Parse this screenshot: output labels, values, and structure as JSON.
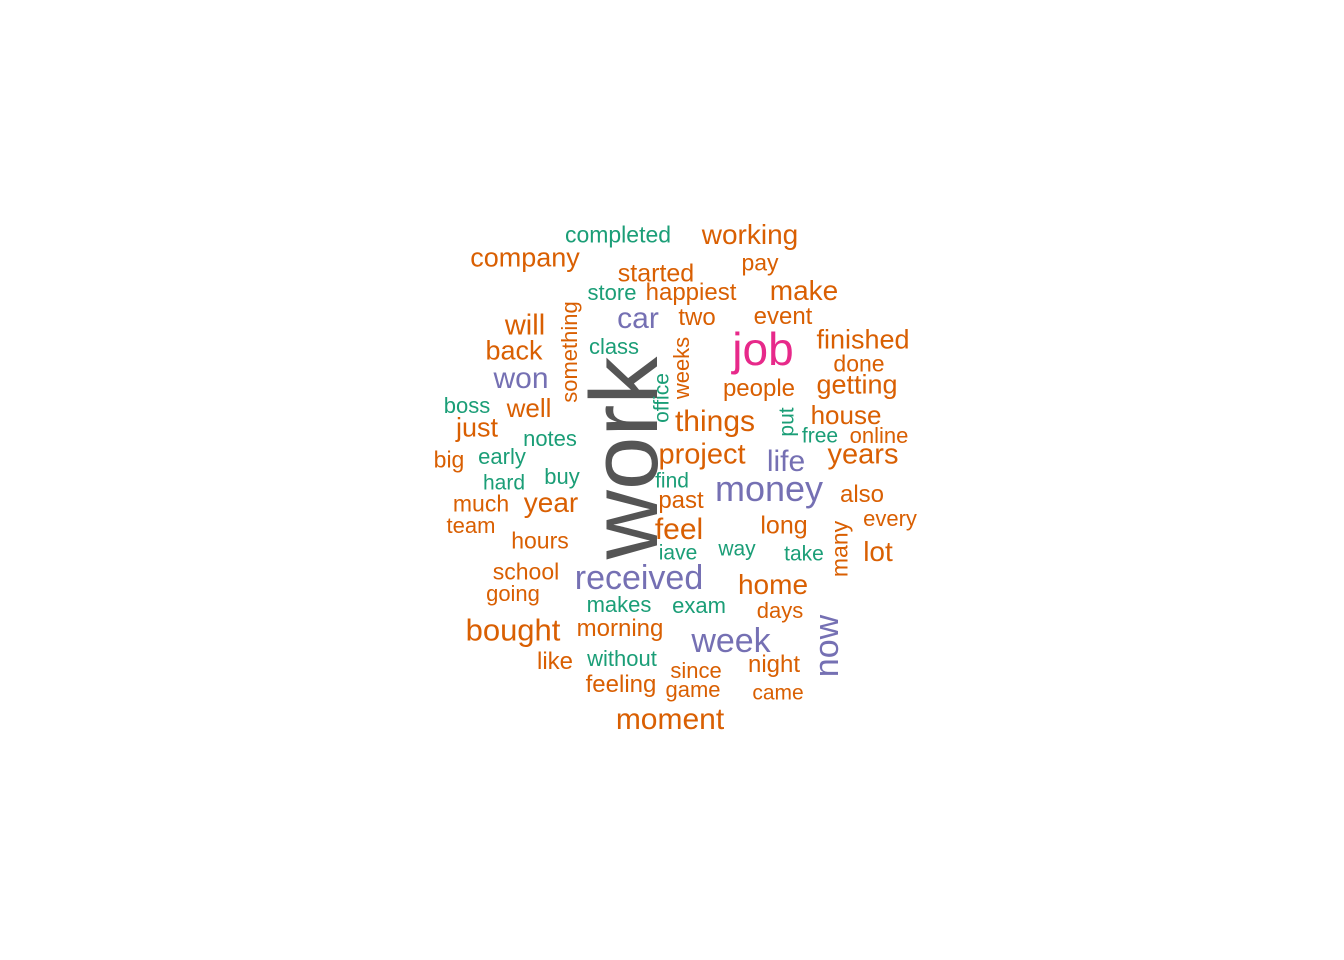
{
  "palette": {
    "orange": "#d95f02",
    "green": "#1b9e77",
    "purple": "#7570b3",
    "magenta": "#e7298a",
    "gray": "#555555"
  },
  "words": [
    {
      "text": "work",
      "color": "gray",
      "rotated": true
    },
    {
      "text": "job",
      "color": "magenta",
      "rotated": false
    },
    {
      "text": "money",
      "color": "purple",
      "rotated": false
    },
    {
      "text": "received",
      "color": "purple",
      "rotated": false
    },
    {
      "text": "week",
      "color": "purple",
      "rotated": false
    },
    {
      "text": "now",
      "color": "purple",
      "rotated": true
    },
    {
      "text": "won",
      "color": "purple",
      "rotated": false
    },
    {
      "text": "car",
      "color": "purple",
      "rotated": false
    },
    {
      "text": "life",
      "color": "purple",
      "rotated": false
    },
    {
      "text": "completed",
      "color": "green",
      "rotated": false
    },
    {
      "text": "working",
      "color": "orange",
      "rotated": false
    },
    {
      "text": "company",
      "color": "orange",
      "rotated": false
    },
    {
      "text": "pay",
      "color": "orange",
      "rotated": false
    },
    {
      "text": "started",
      "color": "orange",
      "rotated": false
    },
    {
      "text": "store",
      "color": "green",
      "rotated": false
    },
    {
      "text": "happiest",
      "color": "orange",
      "rotated": false
    },
    {
      "text": "make",
      "color": "orange",
      "rotated": false
    },
    {
      "text": "something",
      "color": "orange",
      "rotated": true
    },
    {
      "text": "will",
      "color": "orange",
      "rotated": false
    },
    {
      "text": "two",
      "color": "orange",
      "rotated": false
    },
    {
      "text": "event",
      "color": "orange",
      "rotated": false
    },
    {
      "text": "finished",
      "color": "orange",
      "rotated": false
    },
    {
      "text": "back",
      "color": "orange",
      "rotated": false
    },
    {
      "text": "class",
      "color": "green",
      "rotated": false
    },
    {
      "text": "weeks",
      "color": "orange",
      "rotated": true
    },
    {
      "text": "done",
      "color": "orange",
      "rotated": false
    },
    {
      "text": "getting",
      "color": "orange",
      "rotated": false
    },
    {
      "text": "people",
      "color": "orange",
      "rotated": false
    },
    {
      "text": "office",
      "color": "green",
      "rotated": true
    },
    {
      "text": "boss",
      "color": "green",
      "rotated": false
    },
    {
      "text": "well",
      "color": "orange",
      "rotated": false
    },
    {
      "text": "house",
      "color": "orange",
      "rotated": false
    },
    {
      "text": "put",
      "color": "green",
      "rotated": true
    },
    {
      "text": "things",
      "color": "orange",
      "rotated": false
    },
    {
      "text": "just",
      "color": "orange",
      "rotated": false
    },
    {
      "text": "notes",
      "color": "green",
      "rotated": false
    },
    {
      "text": "free",
      "color": "green",
      "rotated": false
    },
    {
      "text": "online",
      "color": "orange",
      "rotated": false
    },
    {
      "text": "big",
      "color": "orange",
      "rotated": false
    },
    {
      "text": "early",
      "color": "green",
      "rotated": false
    },
    {
      "text": "project",
      "color": "orange",
      "rotated": false
    },
    {
      "text": "years",
      "color": "orange",
      "rotated": false
    },
    {
      "text": "buy",
      "color": "green",
      "rotated": false
    },
    {
      "text": "hard",
      "color": "green",
      "rotated": false
    },
    {
      "text": "find",
      "color": "green",
      "rotated": false
    },
    {
      "text": "also",
      "color": "orange",
      "rotated": false
    },
    {
      "text": "much",
      "color": "orange",
      "rotated": false
    },
    {
      "text": "year",
      "color": "orange",
      "rotated": false
    },
    {
      "text": "past",
      "color": "orange",
      "rotated": false
    },
    {
      "text": "every",
      "color": "orange",
      "rotated": false
    },
    {
      "text": "team",
      "color": "orange",
      "rotated": false
    },
    {
      "text": "feel",
      "color": "orange",
      "rotated": false
    },
    {
      "text": "long",
      "color": "orange",
      "rotated": false
    },
    {
      "text": "many",
      "color": "orange",
      "rotated": true
    },
    {
      "text": "hours",
      "color": "orange",
      "rotated": false
    },
    {
      "text": "iave",
      "color": "green",
      "rotated": false
    },
    {
      "text": "way",
      "color": "green",
      "rotated": false
    },
    {
      "text": "take",
      "color": "green",
      "rotated": false
    },
    {
      "text": "lot",
      "color": "orange",
      "rotated": false
    },
    {
      "text": "school",
      "color": "orange",
      "rotated": false
    },
    {
      "text": "home",
      "color": "orange",
      "rotated": false
    },
    {
      "text": "going",
      "color": "orange",
      "rotated": false
    },
    {
      "text": "makes",
      "color": "green",
      "rotated": false
    },
    {
      "text": "exam",
      "color": "green",
      "rotated": false
    },
    {
      "text": "days",
      "color": "orange",
      "rotated": false
    },
    {
      "text": "bought",
      "color": "orange",
      "rotated": false
    },
    {
      "text": "morning",
      "color": "orange",
      "rotated": false
    },
    {
      "text": "like",
      "color": "orange",
      "rotated": false
    },
    {
      "text": "without",
      "color": "green",
      "rotated": false
    },
    {
      "text": "night",
      "color": "orange",
      "rotated": false
    },
    {
      "text": "since",
      "color": "orange",
      "rotated": false
    },
    {
      "text": "feeling",
      "color": "orange",
      "rotated": false
    },
    {
      "text": "game",
      "color": "orange",
      "rotated": false
    },
    {
      "text": "came",
      "color": "orange",
      "rotated": false
    },
    {
      "text": "moment",
      "color": "orange",
      "rotated": false
    }
  ]
}
